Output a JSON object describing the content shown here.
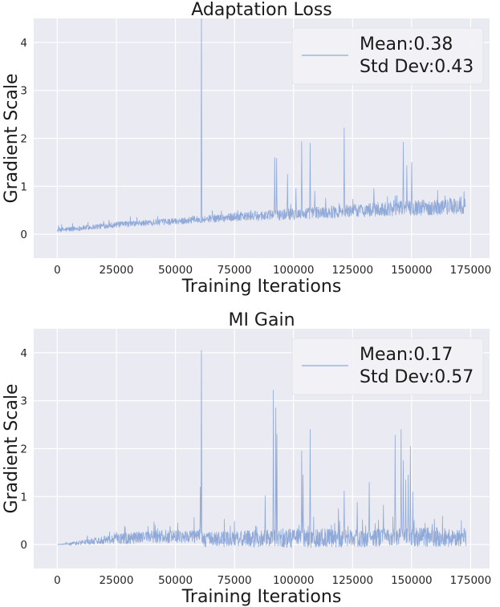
{
  "chart_data": [
    {
      "type": "line",
      "title": "Adaptation Loss",
      "xlabel": "Training Iterations",
      "ylabel": "Gradient Scale",
      "xlim": [
        -10000,
        183000
      ],
      "ylim": [
        -0.5,
        4.5
      ],
      "xticks": [
        0,
        25000,
        50000,
        75000,
        100000,
        125000,
        150000,
        175000
      ],
      "yticks": [
        0,
        1,
        2,
        3,
        4
      ],
      "grid": true,
      "legend": {
        "position": "top-right",
        "entries": [
          "Mean:0.38",
          "Std Dev:0.43"
        ]
      },
      "series": [
        {
          "name": "gradient scale",
          "color": "#8fa9d8",
          "x_end": 173000,
          "baseline": [
            [
              0,
              0.08
            ],
            [
              25000,
              0.2
            ],
            [
              50000,
              0.27
            ],
            [
              75000,
              0.36
            ],
            [
              100000,
              0.42
            ],
            [
              125000,
              0.49
            ],
            [
              150000,
              0.55
            ],
            [
              173000,
              0.58
            ]
          ],
          "noise": [
            [
              0,
              0.05
            ],
            [
              60000,
              0.07
            ],
            [
              100000,
              0.12
            ],
            [
              173000,
              0.18
            ]
          ],
          "spikes": [
            [
              61000,
              4.5
            ],
            [
              92000,
              1.6
            ],
            [
              92800,
              1.58
            ],
            [
              97500,
              1.25
            ],
            [
              103500,
              1.93
            ],
            [
              107000,
              1.9
            ],
            [
              121500,
              2.22
            ],
            [
              134000,
              0.95
            ],
            [
              143000,
              0.8
            ],
            [
              146500,
              1.92
            ],
            [
              148000,
              1.43
            ],
            [
              150000,
              1.5
            ],
            [
              109000,
              0.9
            ],
            [
              101000,
              0.95
            ]
          ]
        }
      ]
    },
    {
      "type": "line",
      "title": "MI Gain",
      "xlabel": "Training Iterations",
      "ylabel": "Gradient Scale",
      "xlim": [
        -10000,
        183000
      ],
      "ylim": [
        -0.5,
        4.5
      ],
      "xticks": [
        0,
        25000,
        50000,
        75000,
        100000,
        125000,
        150000,
        175000
      ],
      "yticks": [
        0,
        1,
        2,
        3,
        4
      ],
      "grid": true,
      "legend": {
        "position": "top-right",
        "entries": [
          "Mean:0.17",
          "Std Dev:0.57"
        ]
      },
      "series": [
        {
          "name": "gradient scale",
          "color": "#8fa9d8",
          "x_end": 173000,
          "baseline": [
            [
              0,
              0.0
            ],
            [
              5000,
              0.01
            ],
            [
              20000,
              0.1
            ],
            [
              40000,
              0.16
            ],
            [
              60000,
              0.18
            ],
            [
              61500,
              0.1
            ],
            [
              80000,
              0.12
            ],
            [
              100000,
              0.13
            ],
            [
              125000,
              0.14
            ],
            [
              150000,
              0.15
            ],
            [
              173000,
              0.16
            ]
          ],
          "noise": [
            [
              0,
              0.0
            ],
            [
              10000,
              0.05
            ],
            [
              30000,
              0.12
            ],
            [
              60000,
              0.15
            ],
            [
              100000,
              0.2
            ],
            [
              173000,
              0.2
            ]
          ],
          "spikes": [
            [
              61000,
              4.05
            ],
            [
              60500,
              1.2
            ],
            [
              91500,
              3.22
            ],
            [
              92500,
              2.85
            ],
            [
              93000,
              2.3
            ],
            [
              103500,
              1.95
            ],
            [
              104000,
              1.45
            ],
            [
              107000,
              2.4
            ],
            [
              121500,
              1.12
            ],
            [
              132000,
              1.3
            ],
            [
              143000,
              2.28
            ],
            [
              145500,
              2.4
            ],
            [
              146500,
              1.75
            ],
            [
              147500,
              1.35
            ],
            [
              148500,
              1.45
            ],
            [
              149500,
              2.05
            ],
            [
              150500,
              1.1
            ],
            [
              88000,
              1.02
            ],
            [
              127000,
              0.88
            ],
            [
              138000,
              0.82
            ],
            [
              119000,
              0.75
            ]
          ]
        }
      ]
    }
  ]
}
